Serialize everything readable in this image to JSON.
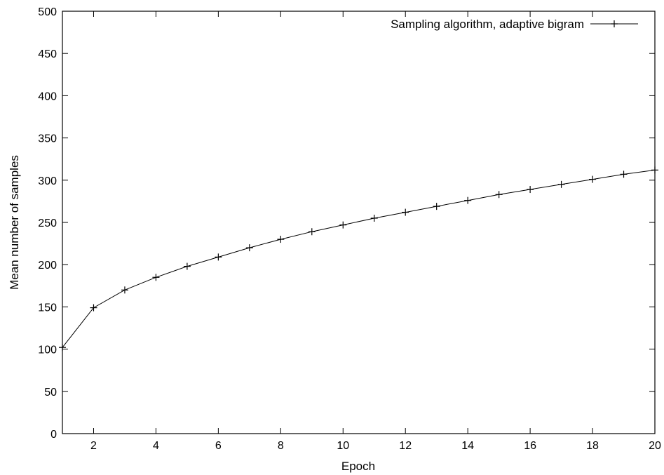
{
  "chart_data": {
    "type": "line",
    "xlabel": "Epoch",
    "ylabel": "Mean number of samples",
    "xlim": [
      1,
      20
    ],
    "ylim": [
      0,
      500
    ],
    "x_ticks": [
      2,
      4,
      6,
      8,
      10,
      12,
      14,
      16,
      18,
      20
    ],
    "y_ticks": [
      0,
      50,
      100,
      150,
      200,
      250,
      300,
      350,
      400,
      450,
      500
    ],
    "grid": false,
    "legend_position": "top-right",
    "series": [
      {
        "name": "Sampling algorithm, adaptive bigram",
        "color": "#000000",
        "marker": "plus",
        "x": [
          1,
          2,
          3,
          4,
          5,
          6,
          7,
          8,
          9,
          10,
          11,
          12,
          13,
          14,
          15,
          16,
          17,
          18,
          19,
          20
        ],
        "y": [
          102,
          149,
          170,
          185,
          198,
          209,
          220,
          230,
          239,
          247,
          255,
          262,
          269,
          276,
          283,
          289,
          295,
          301,
          307,
          312
        ]
      }
    ]
  }
}
